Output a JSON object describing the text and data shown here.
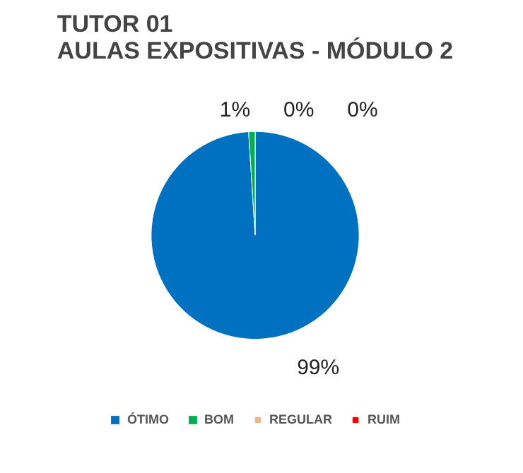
{
  "chart_data": {
    "type": "pie",
    "title": "TUTOR 01\nAULAS EXPOSITIVAS - MÓDULO 2",
    "categories": [
      "ÓTIMO",
      "BOM",
      "REGULAR",
      "RUIM"
    ],
    "values": [
      99,
      1,
      0,
      0
    ],
    "colors": [
      "#0070c0",
      "#00b050",
      "#f4b183",
      "#ff0000"
    ],
    "value_labels": [
      "99%",
      "1%",
      "0%",
      "0%"
    ],
    "legend": "bottom"
  }
}
